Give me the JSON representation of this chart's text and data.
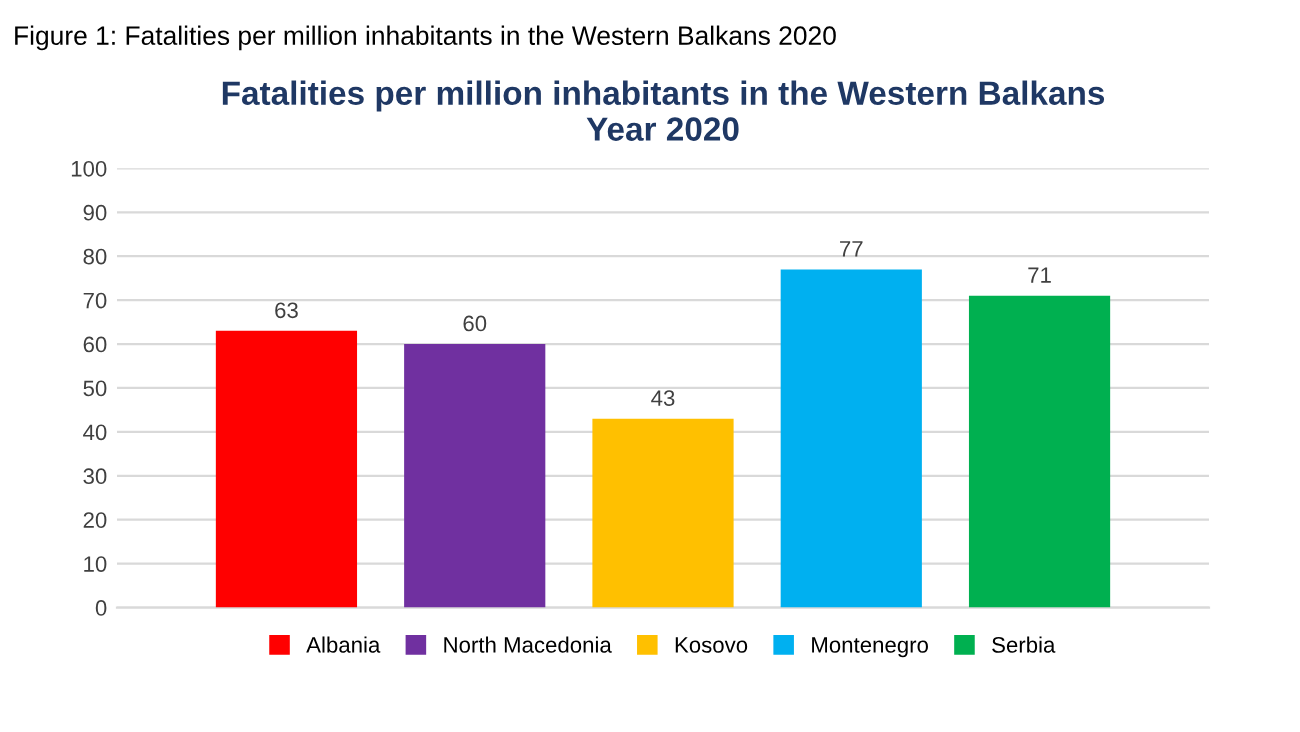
{
  "chart_data": {
    "type": "bar",
    "title": "Fatalities per million inhabitants in the Western Balkans\nYear 2020",
    "annotations": [
      "Figure 1: Fatalities per million inhabitants in the Western Balkans 2020"
    ],
    "categories": [
      null,
      null,
      null,
      null,
      null
    ],
    "series": [
      {
        "name": "Albania",
        "color": "#ff0000",
        "values": [
          63,
          null,
          null,
          null,
          null
        ]
      },
      {
        "name": "North Macedonia",
        "color": "#7030a0",
        "values": [
          null,
          60,
          null,
          null,
          null
        ]
      },
      {
        "name": "Kosovo",
        "color": "#ffc000",
        "values": [
          null,
          null,
          43,
          null,
          null
        ]
      },
      {
        "name": "Montenegro",
        "color": "#00b0f0",
        "values": [
          null,
          null,
          null,
          77,
          null
        ]
      },
      {
        "name": "Serbia",
        "color": "#00b050",
        "values": [
          null,
          null,
          null,
          null,
          71
        ]
      }
    ],
    "ylim": [
      0,
      100
    ],
    "yticks": [
      0,
      10,
      20,
      30,
      40,
      50,
      60,
      70,
      80,
      90,
      100
    ],
    "grid": "y",
    "legend": "bottom",
    "data_labels": true
  }
}
